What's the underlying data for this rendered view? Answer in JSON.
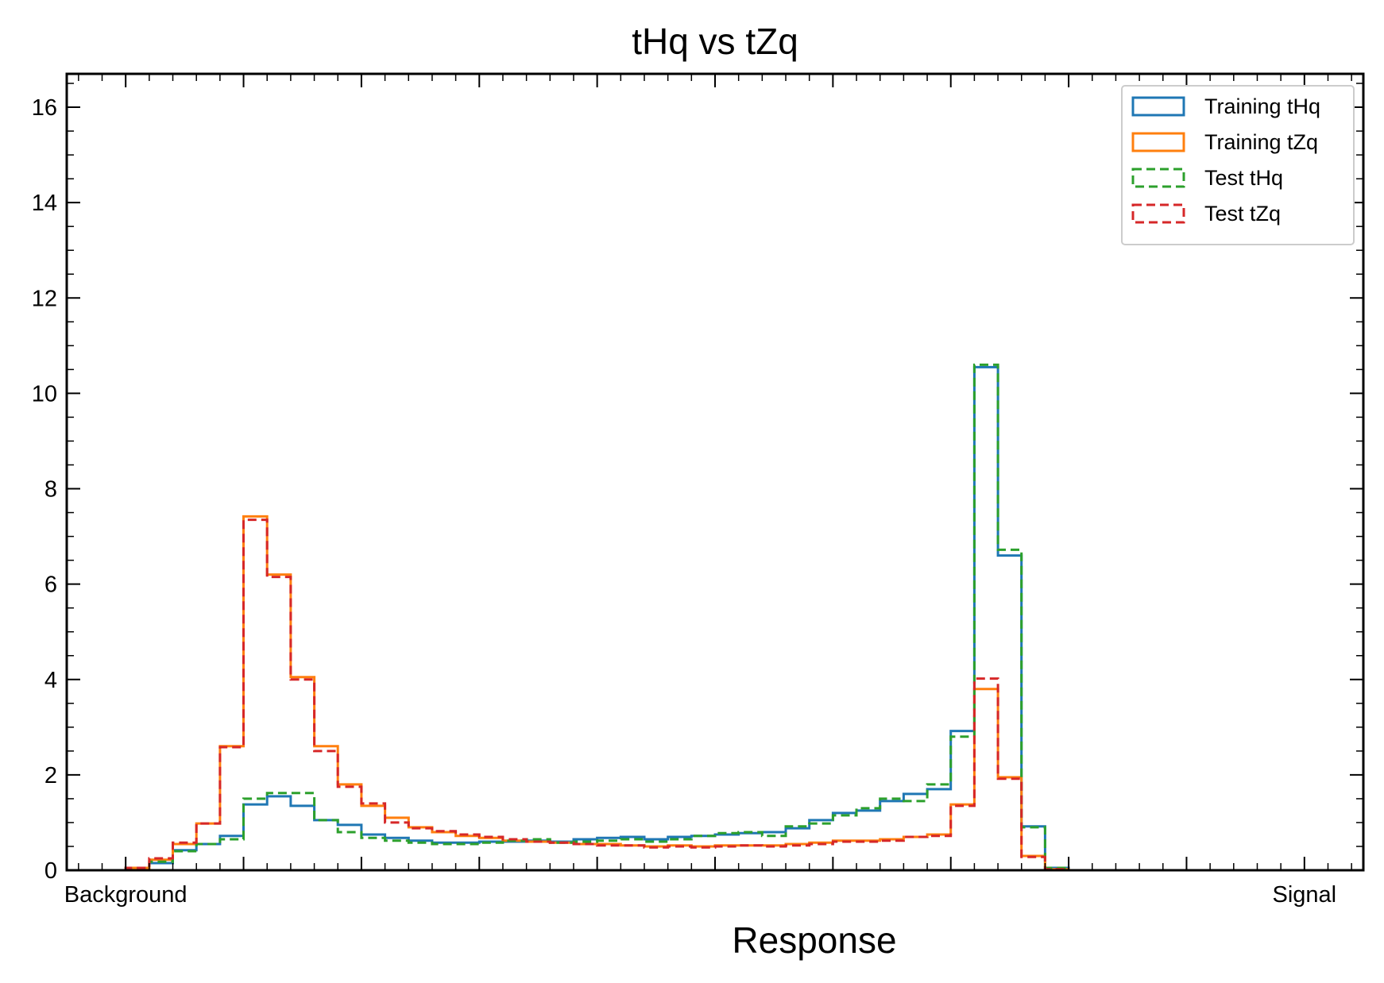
{
  "chart_data": {
    "type": "histogram",
    "title": "tHq vs tZq",
    "xlabel": "Response",
    "ylabel": "",
    "x_tick_labels": [
      {
        "x": 0.0,
        "label": "Background"
      },
      {
        "x": 1.0,
        "label": "Signal"
      }
    ],
    "xlim": [
      -0.05,
      1.05
    ],
    "ylim": [
      0,
      16.7
    ],
    "y_ticks": [
      0,
      2,
      4,
      6,
      8,
      10,
      12,
      14,
      16
    ],
    "y_tick_labels": [
      "0",
      "2",
      "4",
      "6",
      "8",
      "10",
      "12",
      "14",
      "16"
    ],
    "bin_edges": [
      0.0,
      0.02,
      0.04,
      0.06,
      0.08,
      0.1,
      0.12,
      0.14,
      0.16,
      0.18,
      0.2,
      0.22,
      0.24,
      0.26,
      0.28,
      0.3,
      0.32,
      0.34,
      0.36,
      0.38,
      0.4,
      0.42,
      0.44,
      0.46,
      0.48,
      0.5,
      0.52,
      0.54,
      0.56,
      0.58,
      0.6,
      0.62,
      0.64,
      0.66,
      0.68,
      0.7,
      0.72,
      0.74,
      0.76,
      0.78,
      0.8,
      0.82,
      0.84,
      0.86,
      0.88,
      0.9,
      0.92,
      0.94,
      0.96,
      0.98,
      1.0
    ],
    "legend_position": "top-right",
    "series": [
      {
        "name": "Training tHq",
        "color": "#1f77b4",
        "style": "solid",
        "values": [
          0.05,
          0.15,
          0.42,
          0.55,
          0.72,
          1.38,
          1.55,
          1.35,
          1.05,
          0.95,
          0.75,
          0.68,
          0.62,
          0.58,
          0.58,
          0.6,
          0.6,
          0.62,
          0.6,
          0.65,
          0.68,
          0.7,
          0.65,
          0.7,
          0.72,
          0.75,
          0.78,
          0.8,
          0.88,
          1.05,
          1.2,
          1.25,
          1.45,
          1.6,
          1.7,
          2.92,
          10.55,
          6.6,
          0.92,
          0.05,
          0,
          0,
          0,
          0,
          0,
          0,
          0,
          0,
          0,
          0
        ]
      },
      {
        "name": "Training tZq",
        "color": "#ff7f0e",
        "style": "solid",
        "values": [
          0.05,
          0.22,
          0.55,
          0.98,
          2.6,
          7.42,
          6.2,
          4.05,
          2.6,
          1.8,
          1.35,
          1.1,
          0.9,
          0.8,
          0.72,
          0.68,
          0.62,
          0.6,
          0.58,
          0.55,
          0.55,
          0.52,
          0.5,
          0.52,
          0.5,
          0.52,
          0.52,
          0.52,
          0.55,
          0.58,
          0.62,
          0.62,
          0.65,
          0.7,
          0.75,
          1.38,
          3.8,
          1.95,
          0.3,
          0.02,
          0,
          0,
          0,
          0,
          0,
          0,
          0,
          0,
          0,
          0
        ]
      },
      {
        "name": "Test tHq",
        "color": "#2ca02c",
        "style": "dashed",
        "values": [
          0.05,
          0.18,
          0.4,
          0.55,
          0.65,
          1.5,
          1.62,
          1.62,
          1.05,
          0.8,
          0.68,
          0.62,
          0.58,
          0.55,
          0.55,
          0.58,
          0.62,
          0.65,
          0.58,
          0.6,
          0.62,
          0.65,
          0.6,
          0.65,
          0.72,
          0.78,
          0.8,
          0.72,
          0.92,
          0.98,
          1.15,
          1.3,
          1.5,
          1.45,
          1.8,
          2.8,
          10.6,
          6.72,
          0.9,
          0.05,
          0,
          0,
          0,
          0,
          0,
          0,
          0,
          0,
          0,
          0
        ]
      },
      {
        "name": "Test tZq",
        "color": "#d62728",
        "style": "dashed",
        "values": [
          0.05,
          0.25,
          0.58,
          0.98,
          2.58,
          7.35,
          6.15,
          4.0,
          2.5,
          1.75,
          1.4,
          1.0,
          0.88,
          0.82,
          0.75,
          0.7,
          0.65,
          0.6,
          0.58,
          0.55,
          0.52,
          0.52,
          0.48,
          0.5,
          0.48,
          0.5,
          0.52,
          0.5,
          0.52,
          0.55,
          0.6,
          0.6,
          0.62,
          0.7,
          0.72,
          1.35,
          4.02,
          1.92,
          0.28,
          0.02,
          0,
          0,
          0,
          0,
          0,
          0,
          0,
          0,
          0,
          0
        ]
      }
    ]
  }
}
